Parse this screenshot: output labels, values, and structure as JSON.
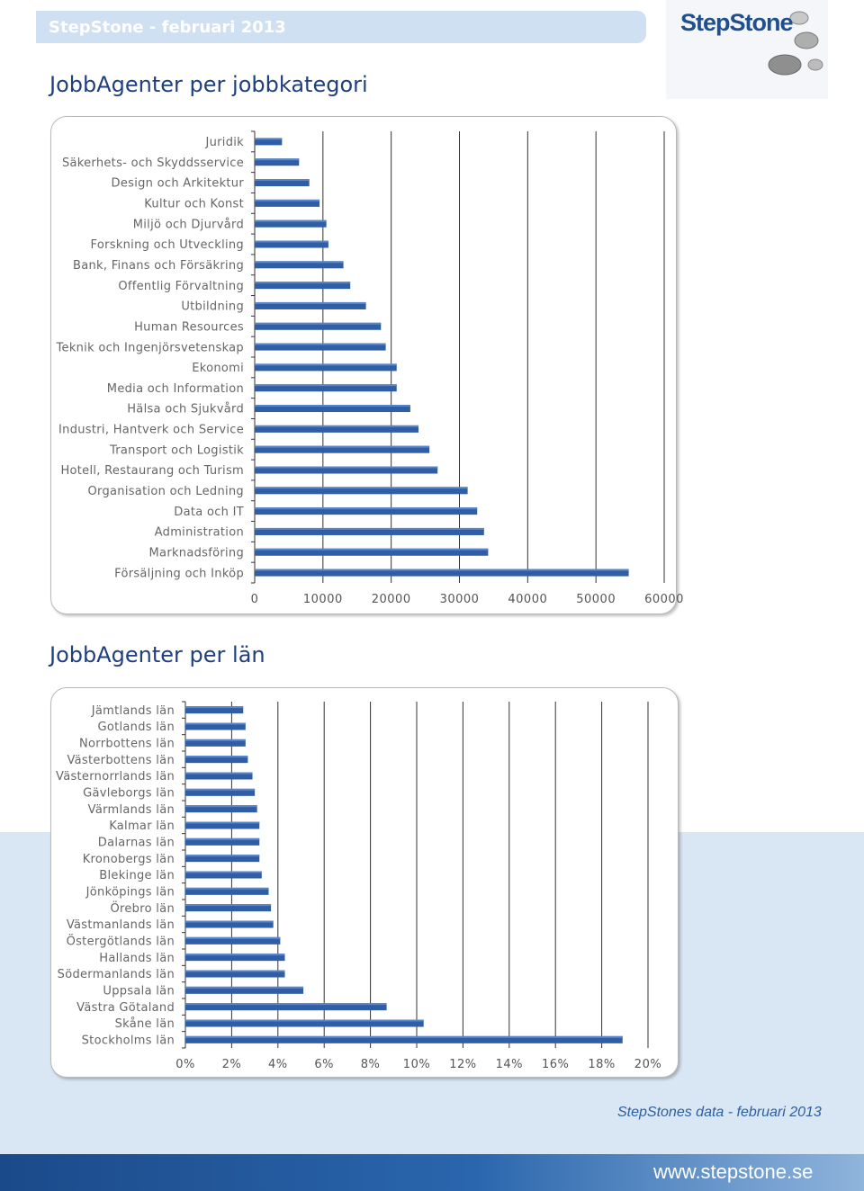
{
  "header": {
    "title": "StepStone - februari 2013"
  },
  "logo": {
    "text": "StepStone"
  },
  "footer": {
    "source": "StepStones data - februari 2013",
    "website": "www.stepstone.se"
  },
  "colors": {
    "bar": "#2f5ea6",
    "bar_highlight": "#5a86c8",
    "title": "#1f3f7f"
  },
  "chart_data": [
    {
      "type": "bar",
      "orientation": "horizontal",
      "title": "JobbAgenter per jobbkategori",
      "categories": [
        "Juridik",
        "Säkerhets- och Skyddsservice",
        "Design och Arkitektur",
        "Kultur och Konst",
        "Miljö och Djurvård",
        "Forskning och Utveckling",
        "Bank, Finans och Försäkring",
        "Offentlig Förvaltning",
        "Utbildning",
        "Human Resources",
        "Teknik och Ingenjörsvetenskap",
        "Ekonomi",
        "Media och Information",
        "Hälsa och Sjukvård",
        "Industri, Hantverk och Service",
        "Transport och Logistik",
        "Hotell, Restaurang och Turism",
        "Organisation och Ledning",
        "Data och IT",
        "Administration",
        "Marknadsföring",
        "Försäljning och Inköp"
      ],
      "values": [
        4000,
        6500,
        8000,
        9500,
        10500,
        10800,
        13000,
        14000,
        16300,
        18500,
        19200,
        20800,
        20800,
        22800,
        24000,
        25600,
        26800,
        31200,
        32600,
        33600,
        34200,
        54800
      ],
      "xlim": [
        0,
        60000
      ],
      "xticks": [
        "0",
        "10000",
        "20000",
        "30000",
        "40000",
        "50000",
        "60000"
      ],
      "grid": true
    },
    {
      "type": "bar",
      "orientation": "horizontal",
      "title": "JobbAgenter per län",
      "categories": [
        "Jämtlands län",
        "Gotlands län",
        "Norrbottens län",
        "Västerbottens län",
        "Västernorrlands län",
        "Gävleborgs län",
        "Värmlands län",
        "Kalmar län",
        "Dalarnas län",
        "Kronobergs län",
        "Blekinge län",
        "Jönköpings län",
        "Örebro län",
        "Västmanlands län",
        "Östergötlands län",
        "Hallands län",
        "Södermanlands län",
        "Uppsala län",
        "Västra Götaland",
        "Skåne län",
        "Stockholms län"
      ],
      "values": [
        2.5,
        2.6,
        2.6,
        2.7,
        2.9,
        3.0,
        3.1,
        3.2,
        3.2,
        3.2,
        3.3,
        3.6,
        3.7,
        3.8,
        4.1,
        4.3,
        4.3,
        5.1,
        8.7,
        10.3,
        18.9
      ],
      "xlim": [
        0,
        20
      ],
      "unit": "%",
      "xticks": [
        "0%",
        "2%",
        "4%",
        "6%",
        "8%",
        "10%",
        "12%",
        "14%",
        "16%",
        "18%",
        "20%"
      ],
      "grid": true
    }
  ]
}
